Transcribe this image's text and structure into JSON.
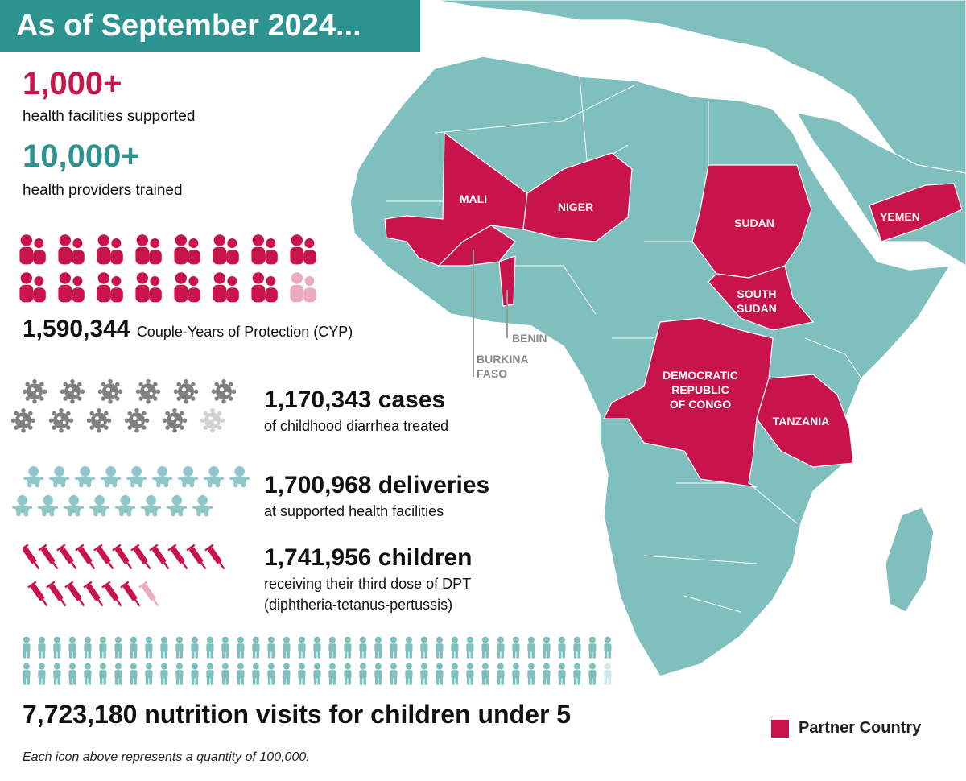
{
  "header": {
    "title": "As of September 2024..."
  },
  "highlights": [
    {
      "value": "1,000+",
      "label": "health facilities supported",
      "color": "#c8134c"
    },
    {
      "value": "10,000+",
      "label": "health providers trained",
      "color": "#2c9390"
    }
  ],
  "stats": {
    "cyp": {
      "value": "1,590,344",
      "label": "Couple-Years of Protection (CYP)",
      "icon": "couple-icon",
      "color": "#c8134c",
      "count": 15.9
    },
    "diarrhea": {
      "value": "1,170,343 cases",
      "label": "of childhood diarrhea treated",
      "icon": "germ-icon",
      "color": "#808080",
      "count": 11.7
    },
    "deliveries": {
      "value": "1,700,968 deliveries",
      "label": "at supported health facilities",
      "icon": "baby-icon",
      "color": "#8fc6c8",
      "count": 17.0
    },
    "dpt": {
      "value": "1,741,956 children",
      "label1": "receiving their third dose of DPT",
      "label2": "(diphtheria-tetanus-pertussis)",
      "icon": "syringe-icon",
      "color": "#c8134c",
      "count": 17.4
    },
    "nutrition": {
      "value": "7,723,180 nutrition visits for children under 5",
      "icon": "child-icon",
      "color": "#7fbfbe",
      "count": 77.2
    }
  },
  "footnote": "Each icon above represents a quantity of 100,000.",
  "legend": {
    "label": "Partner Country",
    "color": "#c8134c"
  },
  "map": {
    "land_color": "#7fbfbe",
    "partner_color": "#c8134c",
    "countries": [
      "MALI",
      "NIGER",
      "SUDAN",
      "YEMEN"
    ],
    "south_sudan": [
      "SOUTH",
      "SUDAN"
    ],
    "drc": [
      "DEMOCRATIC",
      "REPUBLIC",
      "OF CONGO"
    ],
    "tanzania": "TANZANIA",
    "benin": "BENIN",
    "burkina": [
      "BURKINA",
      "FASO"
    ]
  }
}
